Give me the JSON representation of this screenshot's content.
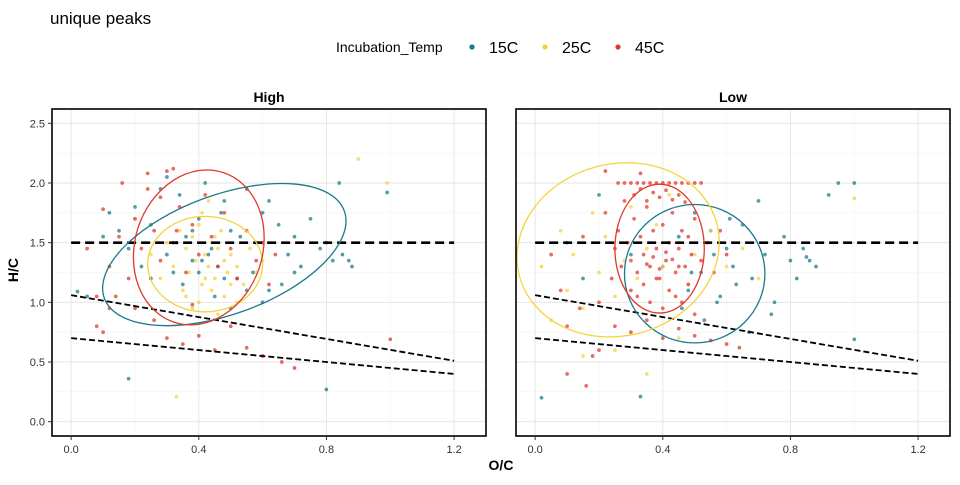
{
  "chart_data": {
    "type": "scatter",
    "title": "unique peaks",
    "xlabel": "O/C",
    "ylabel": "H/C",
    "xlim": [
      -0.06,
      1.3
    ],
    "ylim": [
      -0.12,
      2.62
    ],
    "x_ticks": [
      0.0,
      0.4,
      0.8,
      1.2
    ],
    "x_tick_labels": [
      "0.0",
      "0.4",
      "0.8",
      "1.2"
    ],
    "y_ticks": [
      0.0,
      0.5,
      1.0,
      1.5,
      2.0,
      2.5
    ],
    "y_tick_labels": [
      "0.0",
      "0.5",
      "1.0",
      "1.5",
      "2.0",
      "2.5"
    ],
    "grid": true,
    "legend": {
      "title": "Incubation_Temp",
      "position": "top",
      "entries": [
        {
          "label": "15C",
          "color": "#1a7a8c"
        },
        {
          "label": "25C",
          "color": "#f2d43a"
        },
        {
          "label": "45C",
          "color": "#e0382b"
        }
      ]
    },
    "reference_lines": [
      {
        "style": "dashed",
        "x": [
          0.0,
          1.2
        ],
        "y": [
          1.5,
          1.5
        ]
      },
      {
        "style": "dashed",
        "x": [
          0.0,
          1.2
        ],
        "y": [
          1.06,
          0.51
        ]
      },
      {
        "style": "dashed",
        "x": [
          0.0,
          1.2
        ],
        "y": [
          0.7,
          0.4
        ]
      }
    ],
    "panels": [
      {
        "label": "High",
        "ellipses": [
          {
            "series": "15C",
            "cx": 0.48,
            "cy": 1.4,
            "rx": 0.4,
            "ry": 0.5,
            "angle": -20
          },
          {
            "series": "25C",
            "cx": 0.42,
            "cy": 1.32,
            "rx": 0.18,
            "ry": 0.4,
            "angle": 0
          },
          {
            "series": "45C",
            "cx": 0.4,
            "cy": 1.46,
            "rx": 0.2,
            "ry": 0.66,
            "angle": 18
          }
        ],
        "series": [
          {
            "name": "15C",
            "x": [
              0.02,
              0.05,
              0.1,
              0.12,
              0.15,
              0.18,
              0.2,
              0.22,
              0.25,
              0.28,
              0.3,
              0.32,
              0.34,
              0.36,
              0.38,
              0.4,
              0.42,
              0.44,
              0.46,
              0.48,
              0.5,
              0.52,
              0.55,
              0.58,
              0.6,
              0.62,
              0.65,
              0.68,
              0.7,
              0.72,
              0.75,
              0.78,
              0.8,
              0.82,
              0.84,
              0.85,
              0.87,
              0.88,
              0.3,
              0.35,
              0.4,
              0.45,
              0.5,
              0.55,
              0.6,
              0.25,
              0.38,
              0.43,
              0.47,
              0.53,
              0.57,
              0.62,
              0.66,
              0.7,
              0.33,
              0.41,
              0.48,
              0.18,
              0.8,
              0.99
            ],
            "y": [
              1.09,
              1.05,
              1.55,
              1.75,
              1.6,
              1.45,
              1.8,
              1.3,
              1.65,
              1.95,
              1.4,
              1.25,
              1.9,
              1.55,
              1.35,
              1.7,
              2.0,
              1.45,
              1.3,
              1.85,
              1.6,
              1.2,
              1.95,
              1.5,
              1.75,
              1.1,
              1.65,
              1.4,
              1.55,
              1.3,
              1.7,
              1.45,
              1.5,
              1.35,
              2.0,
              1.4,
              1.35,
              1.3,
              2.05,
              1.15,
              1.25,
              1.05,
              0.95,
              1.1,
              1.0,
              1.2,
              1.6,
              1.4,
              1.75,
              1.55,
              1.25,
              1.85,
              1.15,
              1.25,
              1.5,
              1.35,
              1.2,
              0.36,
              0.27,
              1.92
            ]
          },
          {
            "name": "25C",
            "x": [
              0.2,
              0.25,
              0.28,
              0.3,
              0.32,
              0.34,
              0.35,
              0.36,
              0.37,
              0.38,
              0.39,
              0.4,
              0.41,
              0.42,
              0.43,
              0.44,
              0.45,
              0.46,
              0.47,
              0.48,
              0.49,
              0.5,
              0.52,
              0.54,
              0.56,
              0.58,
              0.6,
              0.36,
              0.38,
              0.4,
              0.42,
              0.44,
              0.46,
              0.48,
              0.5,
              0.52,
              0.41,
              0.43,
              0.45,
              0.9,
              0.33,
              0.99
            ],
            "y": [
              1.7,
              1.4,
              1.2,
              1.5,
              1.3,
              1.6,
              1.1,
              1.45,
              1.25,
              1.55,
              1.35,
              1.65,
              1.15,
              1.4,
              1.3,
              1.5,
              1.2,
              1.45,
              1.6,
              1.35,
              1.25,
              1.4,
              1.3,
              1.15,
              1.45,
              1.25,
              1.35,
              1.05,
              0.95,
              1.0,
              1.2,
              1.1,
              0.9,
              1.05,
              1.15,
              1.0,
              1.75,
              1.85,
              1.55,
              2.2,
              0.21,
              2.0
            ]
          },
          {
            "name": "45C",
            "x": [
              0.05,
              0.08,
              0.1,
              0.12,
              0.15,
              0.18,
              0.2,
              0.22,
              0.24,
              0.26,
              0.28,
              0.3,
              0.32,
              0.34,
              0.36,
              0.38,
              0.4,
              0.42,
              0.44,
              0.46,
              0.48,
              0.5,
              0.52,
              0.55,
              0.58,
              0.6,
              0.62,
              0.64,
              0.1,
              0.14,
              0.2,
              0.26,
              0.3,
              0.35,
              0.4,
              0.45,
              0.5,
              0.55,
              0.6,
              0.16,
              0.24,
              0.32,
              0.28,
              0.33,
              0.38,
              0.12,
              0.08,
              1.0,
              0.66,
              0.7
            ],
            "y": [
              1.45,
              0.8,
              1.78,
              1.3,
              1.55,
              1.2,
              1.7,
              1.45,
              1.95,
              1.6,
              1.35,
              2.1,
              1.5,
              1.8,
              1.25,
              1.65,
              1.4,
              1.9,
              1.55,
              1.3,
              1.75,
              1.45,
              1.2,
              1.6,
              1.35,
              1.5,
              1.15,
              1.4,
              0.75,
              1.05,
              0.95,
              0.85,
              0.7,
              0.65,
              0.72,
              0.6,
              0.8,
              0.62,
              0.55,
              2.0,
              2.08,
              2.12,
              1.88,
              1.6,
              0.98,
              0.95,
              1.05,
              0.69,
              0.5,
              0.45
            ]
          }
        ]
      },
      {
        "label": "Low",
        "ellipses": [
          {
            "series": "15C",
            "cx": 0.5,
            "cy": 1.24,
            "rx": 0.22,
            "ry": 0.58,
            "angle": 0
          },
          {
            "series": "25C",
            "cx": 0.26,
            "cy": 1.44,
            "rx": 0.32,
            "ry": 0.72,
            "angle": -15
          },
          {
            "series": "45C",
            "cx": 0.39,
            "cy": 1.45,
            "rx": 0.14,
            "ry": 0.54,
            "angle": 0
          }
        ],
        "series": [
          {
            "name": "15C",
            "x": [
              0.02,
              0.1,
              0.15,
              0.2,
              0.3,
              0.33,
              0.4,
              0.45,
              0.48,
              0.5,
              0.52,
              0.55,
              0.58,
              0.6,
              0.62,
              0.65,
              0.68,
              0.7,
              0.72,
              0.75,
              0.78,
              0.8,
              0.82,
              0.84,
              0.86,
              0.88,
              0.92,
              0.95,
              1.0,
              0.46,
              0.53,
              0.57,
              0.63,
              0.67,
              0.74,
              0.56,
              0.61,
              0.49,
              0.85,
              1.0
            ],
            "y": [
              0.2,
              1.5,
              1.2,
              1.9,
              1.4,
              0.21,
              1.3,
              1.55,
              1.1,
              1.75,
              1.25,
              1.6,
              1.05,
              1.45,
              1.3,
              1.65,
              1.2,
              1.85,
              1.4,
              1.0,
              1.55,
              1.35,
              1.2,
              1.45,
              1.35,
              1.3,
              1.9,
              2.0,
              2.0,
              0.95,
              0.85,
              1.0,
              1.15,
              0.75,
              0.9,
              1.4,
              1.7,
              1.25,
              1.38,
              0.69
            ]
          },
          {
            "name": "25C",
            "x": [
              0.02,
              0.05,
              0.08,
              0.1,
              0.12,
              0.15,
              0.18,
              0.2,
              0.22,
              0.25,
              0.28,
              0.3,
              0.32,
              0.35,
              0.38,
              0.4,
              0.42,
              0.45,
              0.48,
              0.5,
              0.55,
              0.6,
              0.65,
              0.7,
              0.15,
              0.25,
              0.35,
              0.45,
              1.0
            ],
            "y": [
              1.3,
              0.85,
              1.6,
              1.1,
              1.4,
              0.95,
              1.75,
              1.25,
              1.55,
              1.05,
              1.35,
              1.8,
              1.2,
              1.45,
              1.65,
              1.3,
              1.9,
              1.5,
              1.15,
              1.4,
              1.6,
              1.3,
              1.45,
              1.2,
              0.55,
              0.6,
              0.4,
              0.7,
              1.87
            ]
          },
          {
            "name": "45C",
            "x": [
              0.05,
              0.08,
              0.1,
              0.15,
              0.2,
              0.22,
              0.24,
              0.25,
              0.26,
              0.27,
              0.28,
              0.29,
              0.3,
              0.31,
              0.32,
              0.33,
              0.34,
              0.35,
              0.36,
              0.37,
              0.38,
              0.39,
              0.4,
              0.41,
              0.42,
              0.43,
              0.44,
              0.45,
              0.46,
              0.47,
              0.48,
              0.49,
              0.5,
              0.52,
              0.54,
              0.56,
              0.58,
              0.6,
              0.26,
              0.28,
              0.3,
              0.32,
              0.34,
              0.36,
              0.38,
              0.4,
              0.42,
              0.44,
              0.46,
              0.48,
              0.5,
              0.52,
              0.3,
              0.32,
              0.34,
              0.36,
              0.38,
              0.4,
              0.42,
              0.44,
              0.46,
              0.48,
              0.5,
              0.31,
              0.33,
              0.35,
              0.37,
              0.39,
              0.41,
              0.43,
              0.45,
              0.47,
              0.35,
              0.37,
              0.39,
              0.41,
              0.43,
              0.45,
              0.25,
              0.3,
              0.35,
              0.4,
              0.45,
              0.5,
              0.55,
              0.2,
              0.18,
              0.22,
              0.1,
              0.16,
              0.14,
              0.6,
              0.64,
              0.33
            ],
            "y": [
              1.4,
              1.1,
              0.8,
              1.55,
              1.0,
              1.75,
              1.2,
              1.45,
              1.6,
              1.3,
              1.85,
              1.5,
              1.35,
              1.7,
              1.25,
              1.55,
              1.4,
              1.8,
              1.3,
              1.6,
              1.45,
              1.2,
              1.65,
              1.35,
              1.5,
              1.75,
              1.25,
              1.45,
              1.6,
              1.3,
              1.55,
              1.4,
              1.7,
              1.35,
              1.5,
              1.25,
              1.6,
              1.4,
              2.0,
              2.0,
              2.0,
              2.0,
              2.0,
              2.0,
              2.0,
              2.0,
              2.0,
              2.0,
              2.0,
              2.0,
              2.0,
              2.0,
              1.1,
              1.05,
              1.15,
              1.0,
              1.2,
              0.95,
              1.1,
              1.05,
              1.0,
              1.15,
              0.9,
              1.9,
              1.95,
              1.85,
              1.92,
              1.88,
              1.94,
              1.86,
              1.9,
              1.84,
              1.32,
              1.38,
              1.28,
              1.42,
              1.36,
              1.3,
              0.8,
              0.75,
              0.85,
              0.7,
              0.78,
              0.72,
              0.68,
              0.6,
              0.55,
              2.1,
              0.4,
              0.3,
              0.95,
              0.65,
              0.62,
              2.08
            ]
          }
        ]
      }
    ]
  }
}
